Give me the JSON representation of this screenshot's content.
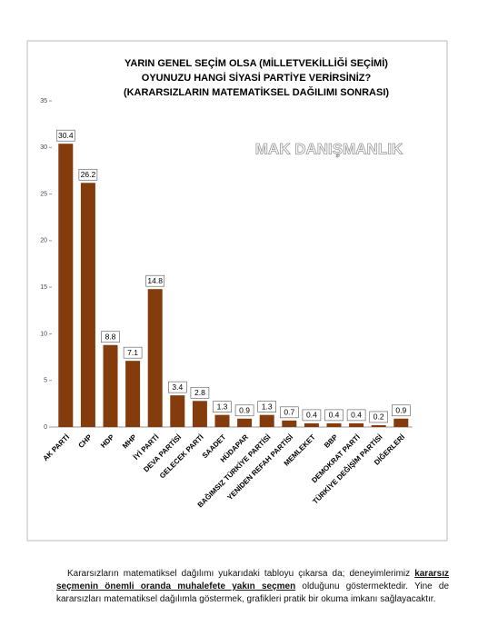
{
  "chart_data": {
    "type": "bar",
    "title": [
      "YARIN GENEL SEÇİM OLSA (MİLLETVEKİLLİĞİ SEÇİMİ)",
      "OYUNUZU HANGİ SİYASİ PARTİYE VERİRSİNİZ?",
      "(KARARSIZLARIN MATEMATİKSEL DAĞILIMI SONRASI)"
    ],
    "watermark": "MAK DANIŞMANLIK",
    "categories": [
      "AK PARTİ",
      "CHP",
      "HDP",
      "MHP",
      "İYİ PARTİ",
      "DEVA PARTİSİ",
      "GELECEK PARTİ",
      "SAADET",
      "HÜDAPAR",
      "BAĞIMSIZ TÜRKİYE PARTİSİ",
      "YENİDEN REFAH PARTİSİ",
      "MEMLEKET",
      "BBP",
      "DEMOKRAT PARTİ",
      "TÜRKİYE DEĞİŞİM PARTİSİ",
      "DİĞERLERİ"
    ],
    "values": [
      30.4,
      26.2,
      8.8,
      7.1,
      14.8,
      3.4,
      2.8,
      1.3,
      0.9,
      1.3,
      0.7,
      0.4,
      0.4,
      0.4,
      0.2,
      0.9
    ],
    "color": "#843c0c",
    "ylim": [
      0,
      35
    ],
    "yticks": [
      0,
      5,
      10,
      15,
      20,
      25,
      30,
      35
    ]
  },
  "text": [
    "Kararsızların matematiksel dağılımı yukarıdaki tabloyu çıkarsa da; deneyimlerimiz ",
    "kararsız seçmenin önemli oranda muhalefete yakın seçmen",
    " olduğunu göstermektedir. Yine de kararsızları matematiksel dağılımla göstermek, grafikleri pratik bir okuma imkanı sağlayacaktır."
  ]
}
